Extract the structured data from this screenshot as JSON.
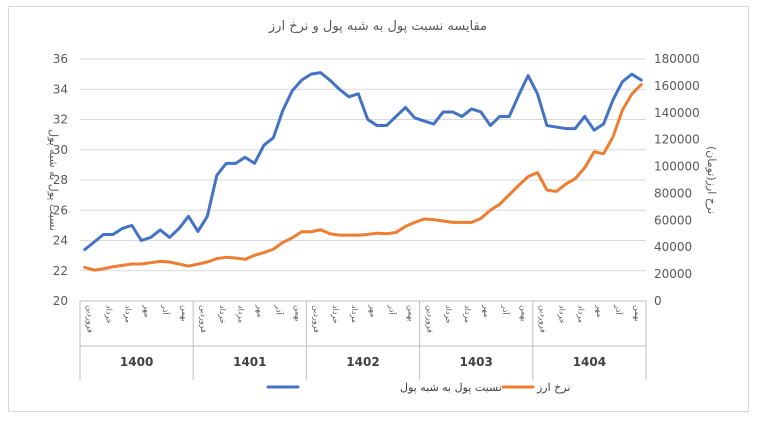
{
  "chart_data": {
    "type": "line",
    "title": "مقایسه نسبت پول به شبه پول و نرخ ارز",
    "ylabel_left": "نسبت پول به شبه پول",
    "ylabel_right": "نرخ ارز(تومان)",
    "ylim_left": [
      20,
      36
    ],
    "yticks_left": [
      "20",
      "22",
      "24",
      "26",
      "28",
      "30",
      "32",
      "34",
      "36"
    ],
    "ylim_right": [
      0,
      180000
    ],
    "yticks_right": [
      "0",
      "20000",
      "40000",
      "60000",
      "80000",
      "100000",
      "120000",
      "140000",
      "160000",
      "180000"
    ],
    "grid": "horizontal",
    "legend_position": "bottom",
    "years": [
      "1400",
      "1401",
      "1402",
      "1403",
      "1404"
    ],
    "month_labels": [
      "فروردین",
      "خرداد",
      "مرداد",
      "مهر",
      "آذر",
      "بهمن"
    ],
    "series": [
      {
        "name": "نسبت پول به شبه پول",
        "color": "#4472C4",
        "axis": "left",
        "values": [
          23.4,
          23.9,
          24.4,
          24.4,
          24.8,
          25.0,
          24.0,
          24.2,
          24.7,
          24.2,
          24.8,
          25.6,
          24.6,
          25.6,
          28.3,
          29.1,
          29.1,
          29.5,
          29.1,
          30.3,
          30.8,
          32.6,
          33.9,
          34.6,
          35.0,
          35.1,
          34.6,
          34.0,
          33.5,
          33.7,
          32.0,
          31.6,
          31.6,
          32.2,
          32.8,
          32.1,
          31.9,
          31.7,
          32.5,
          32.5,
          32.2,
          32.7,
          32.5,
          31.6,
          32.2,
          32.2,
          33.6,
          34.9,
          33.7,
          31.6,
          31.5,
          31.4,
          31.4,
          32.2,
          31.3,
          31.7,
          33.3,
          34.5,
          35.0,
          34.6
        ]
      },
      {
        "name": "نرخ ارز",
        "color": "#ED7D31",
        "axis": "right",
        "values": [
          25000,
          23000,
          24000,
          25500,
          26500,
          27500,
          27500,
          28500,
          29500,
          29000,
          27500,
          26000,
          27500,
          29000,
          31500,
          32500,
          32000,
          31000,
          34000,
          36000,
          38500,
          43500,
          47000,
          51500,
          51500,
          53000,
          50000,
          49000,
          49000,
          49000,
          49500,
          50500,
          50000,
          51000,
          55500,
          58500,
          61000,
          60500,
          59500,
          58500,
          58500,
          58500,
          61500,
          67500,
          72000,
          79000,
          86000,
          92500,
          95500,
          82500,
          81500,
          87000,
          91000,
          99000,
          111000,
          109500,
          122000,
          142000,
          154000,
          161000
        ]
      }
    ]
  }
}
